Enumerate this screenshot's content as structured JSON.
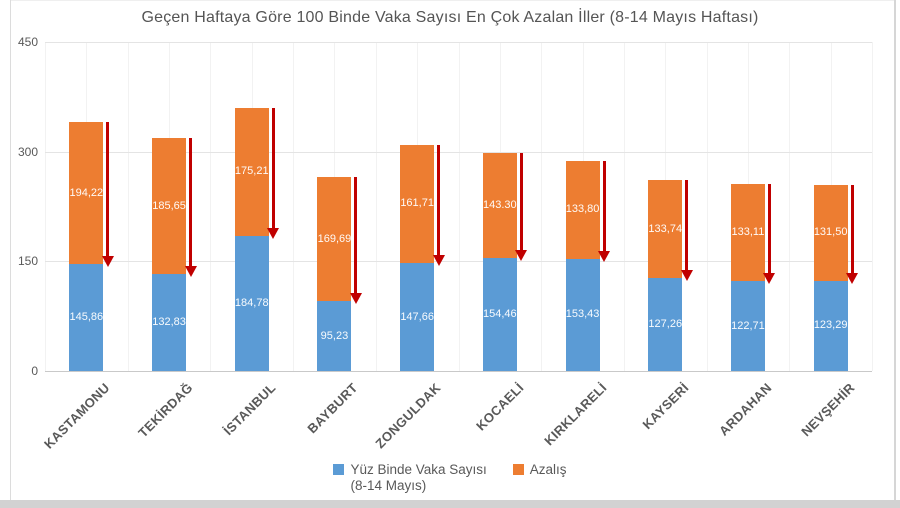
{
  "chart": {
    "title": "Geçen Haftaya Göre 100 Binde Vaka Sayısı En Çok Azalan İller (8-14 Mayıs Haftası)"
  },
  "legend": {
    "series1_label": "Yüz Binde Vaka Sayısı",
    "series1_sublabel": "(8-14 Mayıs)",
    "series2_label": "Azalış"
  },
  "colors": {
    "cases_blue": "#5B9BD5",
    "decrease_orange": "#ED7D31",
    "arrow_red": "#C00000",
    "text_gray": "#595959"
  },
  "chart_data": {
    "type": "bar",
    "stacked": true,
    "title": "Geçen Haftaya Göre 100 Binde Vaka Sayısı En Çok Azalan İller (8-14 Mayıs Haftası)",
    "categories": [
      "KASTAMONU",
      "TEKİRDAĞ",
      "İSTANBUL",
      "BAYBURT",
      "ZONGULDAK",
      "KOCAELİ",
      "KIRKLARELİ",
      "KAYSERİ",
      "ARDAHAN",
      "NEVŞEHİR"
    ],
    "series": [
      {
        "name": "Yüz Binde Vaka Sayısı (8-14 Mayıs)",
        "color": "#5B9BD5",
        "values": [
          145.86,
          132.83,
          184.78,
          95.23,
          147.66,
          154.46,
          153.43,
          127.26,
          122.71,
          123.29
        ],
        "labels": [
          "145,86",
          "132,83",
          "184,78",
          "95,23",
          "147,66",
          "154,46",
          "153,43",
          "127,26",
          "122,71",
          "123,29"
        ]
      },
      {
        "name": "Azalış",
        "color": "#ED7D31",
        "values": [
          194.22,
          185.65,
          175.21,
          169.69,
          161.71,
          143.3,
          133.8,
          133.74,
          133.11,
          131.5
        ],
        "labels": [
          "194,22",
          "185,65",
          "175,21",
          "169,69",
          "161,71",
          "143.30",
          "133,80",
          "133,74",
          "133,11",
          "131,50"
        ]
      }
    ],
    "y_ticks": [
      0,
      150,
      300,
      450
    ],
    "ylim": [
      0,
      450
    ],
    "grid": true,
    "legend_position": "bottom",
    "annotations": "Red down-arrow beside each bar from last week's total down to this week's value (drop equals the orange 'Azalış' segment)",
    "arrow_color": "#C00000"
  }
}
